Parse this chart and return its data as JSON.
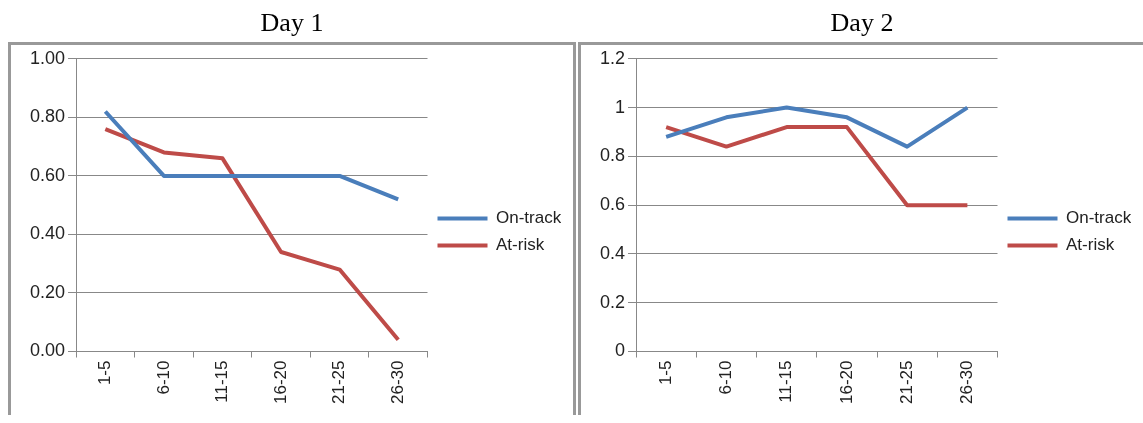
{
  "chart_data": [
    {
      "type": "line",
      "title": "Day 1",
      "categories": [
        "1-5",
        "6-10",
        "11-15",
        "16-20",
        "21-25",
        "26-30"
      ],
      "series": [
        {
          "name": "On-track",
          "color": "#4a7ebb",
          "values": [
            0.82,
            0.6,
            0.6,
            0.6,
            0.6,
            0.52
          ]
        },
        {
          "name": "At-risk",
          "color": "#be4b48",
          "values": [
            0.76,
            0.68,
            0.66,
            0.34,
            0.28,
            0.04
          ]
        }
      ],
      "ylim": [
        0,
        1
      ],
      "yticks": [
        {
          "value": 0,
          "label": "0.00"
        },
        {
          "value": 0.2,
          "label": "0.20"
        },
        {
          "value": 0.4,
          "label": "0.40"
        },
        {
          "value": 0.6,
          "label": "0.60"
        },
        {
          "value": 0.8,
          "label": "0.80"
        },
        {
          "value": 1,
          "label": "1.00"
        }
      ],
      "grid": "y",
      "legend": "right",
      "marker": "none"
    },
    {
      "type": "line",
      "title": "Day 2",
      "categories": [
        "1-5",
        "6-10",
        "11-15",
        "16-20",
        "21-25",
        "26-30"
      ],
      "series": [
        {
          "name": "On-track",
          "color": "#4a7ebb",
          "values": [
            0.88,
            0.96,
            1.0,
            0.96,
            0.84,
            1.0
          ]
        },
        {
          "name": "At-risk",
          "color": "#be4b48",
          "values": [
            0.92,
            0.84,
            0.92,
            0.92,
            0.6,
            0.6
          ]
        }
      ],
      "ylim": [
        0,
        1.2
      ],
      "yticks": [
        0,
        0.2,
        0.4,
        0.6,
        0.8,
        1,
        1.2
      ],
      "grid": "y",
      "legend": "right",
      "marker": "none"
    }
  ]
}
